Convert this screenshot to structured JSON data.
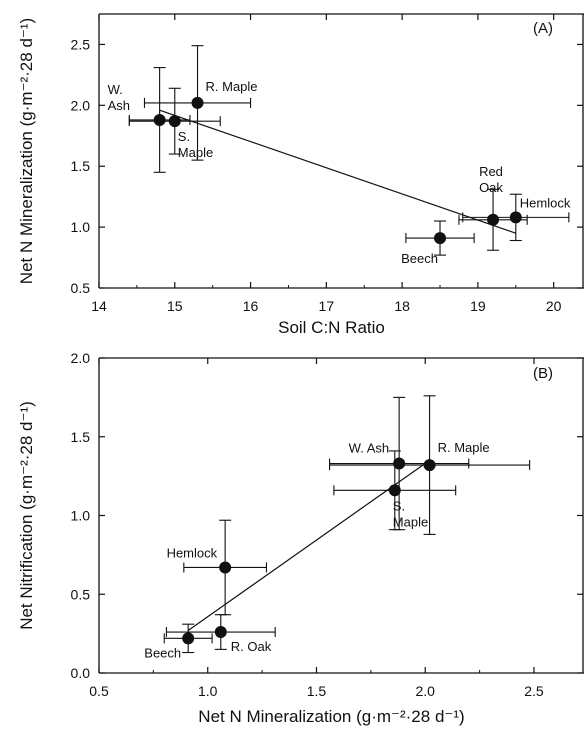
{
  "chart_data": [
    {
      "type": "scatter",
      "panel_label": "(A)",
      "xlabel": "Soil C:N Ratio",
      "ylabel": "Net N Mineralization (g·m⁻²·28 d⁻¹)",
      "xlim": [
        14,
        20.4
      ],
      "ylim": [
        0.5,
        2.75
      ],
      "xticks": [
        14,
        15,
        16,
        17,
        18,
        19,
        20
      ],
      "yticks": [
        0.5,
        1.0,
        1.5,
        2.0,
        2.5
      ],
      "xtick_labels": [
        "14",
        "15",
        "16",
        "17",
        "18",
        "19",
        "20"
      ],
      "ytick_labels": [
        "0.5",
        "1.0",
        "1.5",
        "2.0",
        "2.5"
      ],
      "points": [
        {
          "label": "W. Ash",
          "label_lines": [
            "W.",
            "Ash"
          ],
          "x": 14.8,
          "y": 1.88,
          "xerr": 0.4,
          "yerr": 0.43
        },
        {
          "label": "S. Maple",
          "label_lines": [
            "S.",
            "Maple"
          ],
          "x": 15.0,
          "y": 1.87,
          "xerr": 0.6,
          "yerr": 0.27
        },
        {
          "label": "R. Maple",
          "label_lines": [
            "R. Maple"
          ],
          "x": 15.3,
          "y": 2.02,
          "xerr": 0.7,
          "yerr": 0.47
        },
        {
          "label": "Beech",
          "label_lines": [
            "Beech"
          ],
          "x": 18.5,
          "y": 0.91,
          "xerr": 0.45,
          "yerr": 0.14
        },
        {
          "label": "Red Oak",
          "label_lines": [
            "Red",
            "Oak"
          ],
          "x": 19.2,
          "y": 1.06,
          "xerr": 0.45,
          "yerr": 0.25
        },
        {
          "label": "Hemlock",
          "label_lines": [
            "Hemlock"
          ],
          "x": 19.5,
          "y": 1.08,
          "xerr": 0.7,
          "yerr": 0.19
        }
      ],
      "fit_line": {
        "x": [
          14.8,
          19.5
        ],
        "y": [
          1.96,
          0.95
        ]
      },
      "grid": false
    },
    {
      "type": "scatter",
      "panel_label": "(B)",
      "xlabel": "Net N Mineralization (g·m⁻²·28 d⁻¹)",
      "ylabel": "Net Nitrification (g·m⁻²·28 d⁻¹)",
      "xlim": [
        0.5,
        2.73
      ],
      "ylim": [
        0.0,
        2.0
      ],
      "xticks": [
        0.5,
        1.0,
        1.5,
        2.0,
        2.5
      ],
      "yticks": [
        0.0,
        0.5,
        1.0,
        1.5,
        2.0
      ],
      "xtick_labels": [
        "0.5",
        "1.0",
        "1.5",
        "2.0",
        "2.5"
      ],
      "ytick_labels": [
        "0.0",
        "0.5",
        "1.0",
        "1.5",
        "2.0"
      ],
      "points": [
        {
          "label": "Beech",
          "label_lines": [
            "Beech"
          ],
          "x": 0.91,
          "y": 0.22,
          "xerr": 0.11,
          "yerr": 0.09
        },
        {
          "label": "R. Oak",
          "label_lines": [
            "R. Oak"
          ],
          "x": 1.06,
          "y": 0.26,
          "xerr": 0.25,
          "yerr": 0.11
        },
        {
          "label": "Hemlock",
          "label_lines": [
            "Hemlock"
          ],
          "x": 1.08,
          "y": 0.67,
          "xerr": 0.19,
          "yerr": 0.3
        },
        {
          "label": "S. Maple",
          "label_lines": [
            "S.",
            "Maple"
          ],
          "x": 1.86,
          "y": 1.16,
          "xerr": 0.28,
          "yerr": 0.25
        },
        {
          "label": "W. Ash",
          "label_lines": [
            "W. Ash"
          ],
          "x": 1.88,
          "y": 1.33,
          "xerr": 0.32,
          "yerr": 0.42
        },
        {
          "label": "R. Maple",
          "label_lines": [
            "R. Maple"
          ],
          "x": 2.02,
          "y": 1.32,
          "xerr": 0.46,
          "yerr": 0.44
        }
      ],
      "fit_line": {
        "x": [
          0.91,
          2.02
        ],
        "y": [
          0.27,
          1.35
        ]
      },
      "grid": false
    }
  ]
}
